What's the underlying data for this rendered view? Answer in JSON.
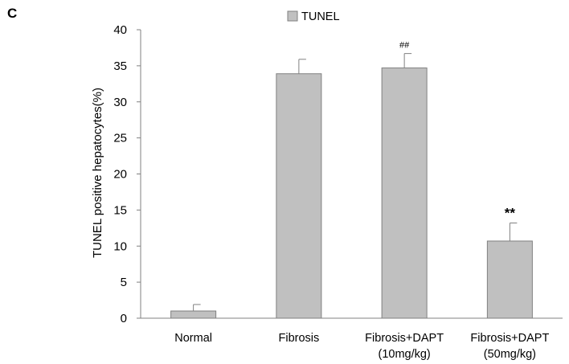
{
  "panel_label": "C",
  "chart_data": {
    "type": "bar",
    "categories": [
      [
        "Normal"
      ],
      [
        "Fibrosis"
      ],
      [
        "Fibrosis+DAPT",
        "(10mg/kg)"
      ],
      [
        "Fibrosis+DAPT",
        "(50mg/kg)"
      ]
    ],
    "series": [
      {
        "name": "TUNEL",
        "values": [
          1.0,
          33.9,
          34.7,
          10.7
        ],
        "errors": [
          0.9,
          2.0,
          2.0,
          2.5
        ],
        "annotations": [
          "",
          "",
          "##",
          "**"
        ]
      }
    ],
    "ylabel": "TUNEL positive hepatocytes(%)",
    "xlabel": "",
    "ylim": [
      0,
      40
    ],
    "yticks": [
      "0",
      "5",
      "10",
      "15",
      "20",
      "25",
      "30",
      "35",
      "40"
    ],
    "legend_position": "top-center",
    "grid": false,
    "bar_color": "#c0c0c0",
    "bar_edge_color": "#808080"
  }
}
